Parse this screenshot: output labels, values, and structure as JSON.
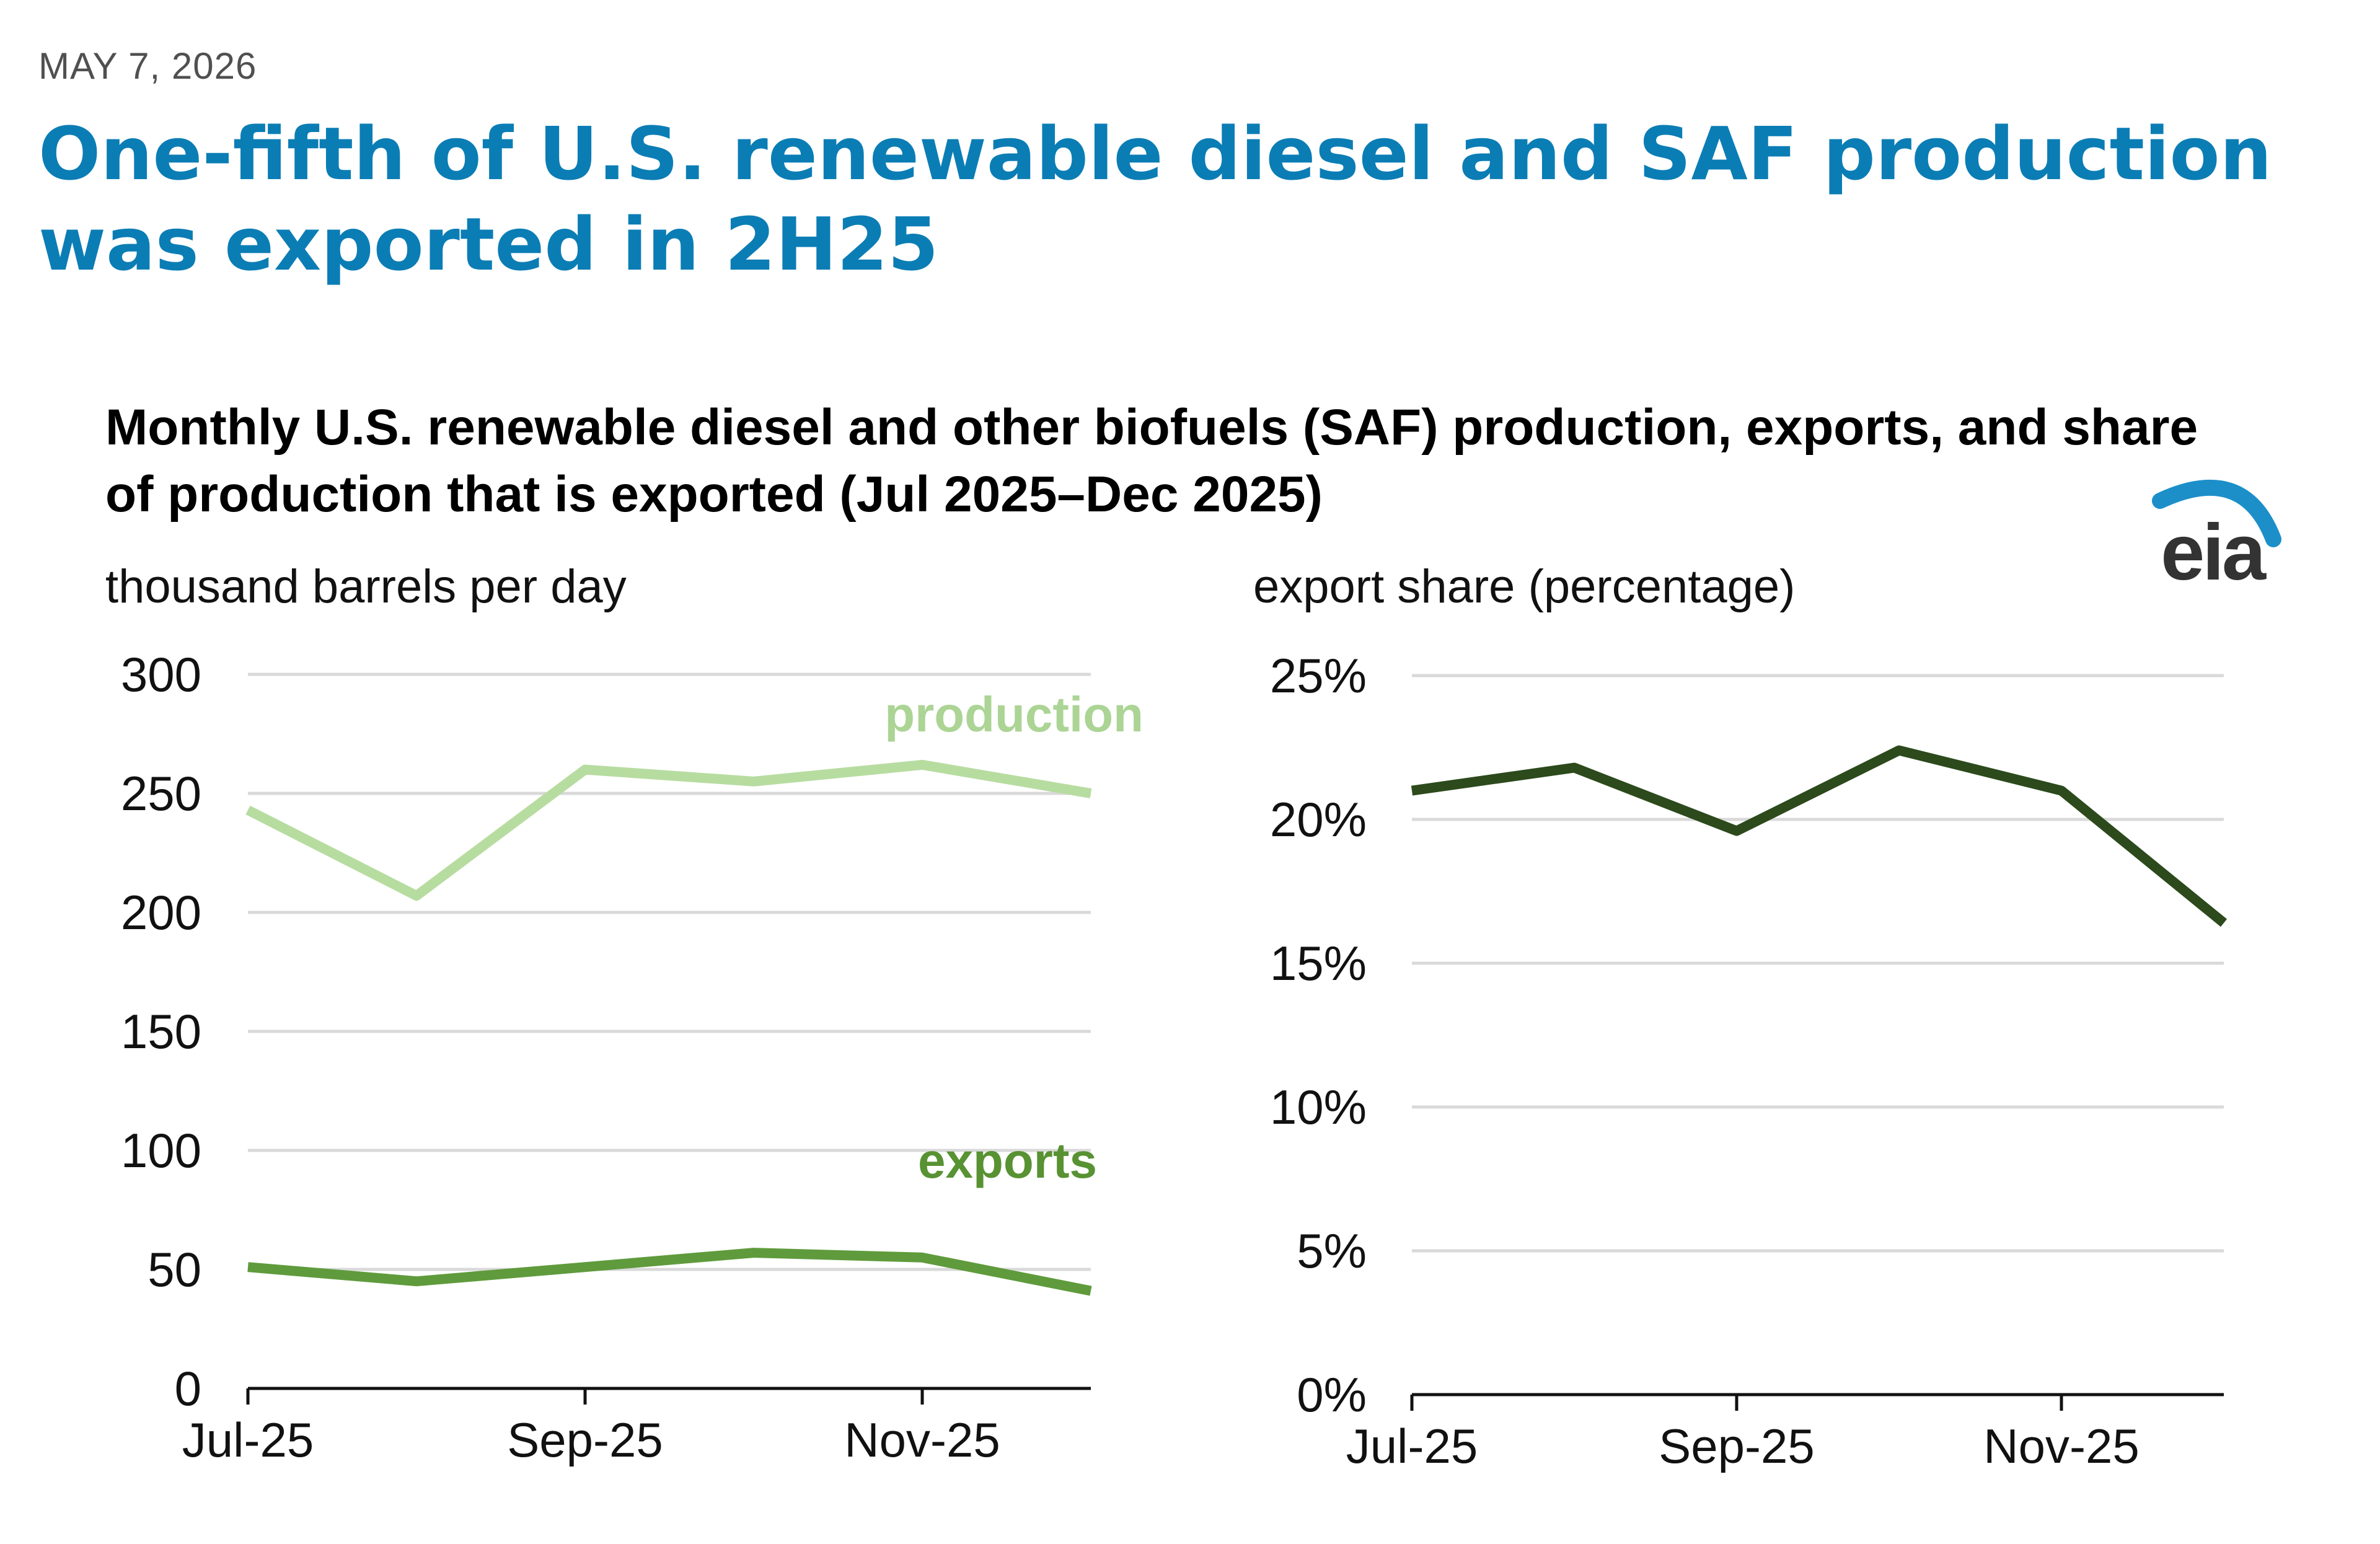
{
  "date": "MAY 7, 2026",
  "headline": "One-fifth of U.S. renewable diesel and SAF production was exported in 2H25",
  "subtitle": "Monthly U.S. renewable diesel and other biofuels (SAF) production, exports, and share of production that is exported (Jul 2025–Dec 2025)",
  "logo_text": "eia",
  "colors": {
    "headline": "#0b7db5",
    "production": "#b7dca0",
    "exports": "#5f9b3c",
    "export_share": "#2c4a1c",
    "production_label": "#abd495",
    "exports_label": "#589233",
    "grid": "#d9d9d9",
    "logo_arc": "#1c8fc9"
  },
  "chart_data": [
    {
      "type": "line",
      "ylabel": "thousand barrels per day",
      "x": [
        "Jul-25",
        "Aug-25",
        "Sep-25",
        "Oct-25",
        "Nov-25",
        "Dec-25"
      ],
      "xtick_labels": [
        "Jul-25",
        "Sep-25",
        "Nov-25"
      ],
      "ylim": [
        0,
        300
      ],
      "yticks": [
        0,
        50,
        100,
        150,
        200,
        250,
        300
      ],
      "ytick_labels": [
        "0",
        "50",
        "100",
        "150",
        "200",
        "250",
        "300"
      ],
      "grid": true,
      "series": [
        {
          "name": "production",
          "values": [
            243,
            207,
            260,
            255,
            262,
            250
          ]
        },
        {
          "name": "exports",
          "values": [
            51,
            45,
            51,
            57,
            55,
            41
          ]
        }
      ]
    },
    {
      "type": "line",
      "ylabel": "export share (percentage)",
      "x": [
        "Jul-25",
        "Aug-25",
        "Sep-25",
        "Oct-25",
        "Nov-25",
        "Dec-25"
      ],
      "xtick_labels": [
        "Jul-25",
        "Sep-25",
        "Nov-25"
      ],
      "ylim": [
        0,
        25
      ],
      "yticks": [
        0,
        5,
        10,
        15,
        20,
        25
      ],
      "ytick_labels": [
        "0%",
        "5%",
        "10%",
        "15%",
        "20%",
        "25%"
      ],
      "grid": true,
      "series": [
        {
          "values": [
            21.0,
            21.8,
            19.6,
            22.4,
            21.0,
            16.4
          ]
        }
      ]
    }
  ]
}
